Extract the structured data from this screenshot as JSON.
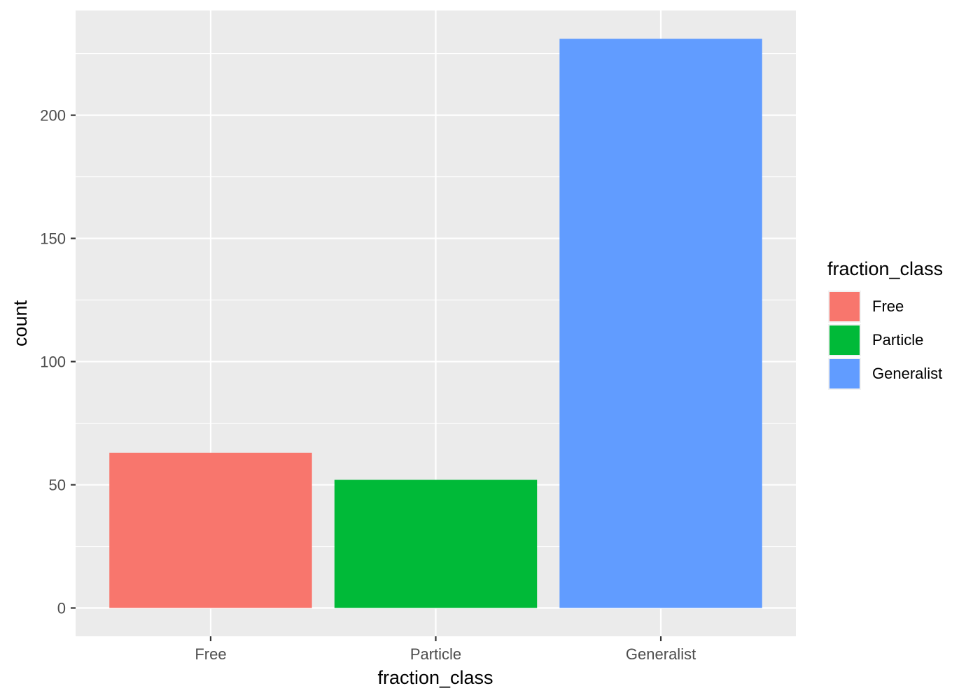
{
  "chart_data": {
    "type": "bar",
    "categories": [
      "Free",
      "Particle",
      "Generalist"
    ],
    "values": [
      63,
      52,
      231
    ],
    "colors": [
      "#F8766D",
      "#00BA38",
      "#619CFF"
    ],
    "xlabel": "fraction_class",
    "ylabel": "count",
    "ylim": [
      -11.5,
      242.5
    ],
    "yticks": [
      0,
      50,
      100,
      150,
      200
    ],
    "ytick_labels": [
      "0",
      "50",
      "100",
      "150",
      "200"
    ],
    "y_minor_ticks": [
      25,
      75,
      125,
      175,
      225
    ],
    "grid": true,
    "panel_background": "#EBEBEB",
    "grid_color": "#FFFFFF",
    "legend": {
      "title": "fraction_class",
      "position": "right",
      "entries": [
        "Free",
        "Particle",
        "Generalist"
      ]
    }
  }
}
